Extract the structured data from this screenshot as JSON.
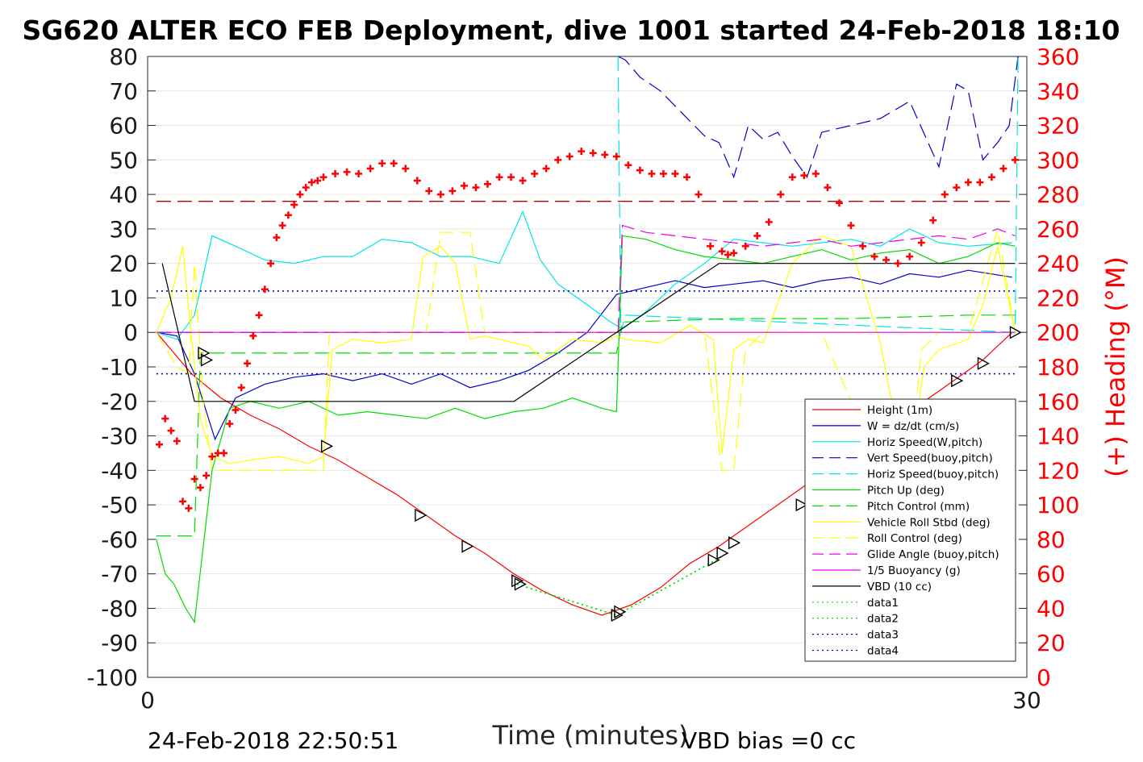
{
  "chart_data": {
    "type": "line",
    "title": "SG620 ALTER ECO FEB Deployment, dive 1001 started 24-Feb-2018 18:10",
    "xlabel": "Time (minutes)",
    "ylabel_right": "(+) Heading (°M)",
    "xlim": [
      0,
      30
    ],
    "ylim": [
      -100,
      80
    ],
    "ylim_right": [
      0,
      360
    ],
    "x_ticks": [
      "0",
      "30"
    ],
    "y_ticks": [
      "80",
      "70",
      "60",
      "50",
      "40",
      "30",
      "20",
      "10",
      "0",
      "-10",
      "-20",
      "-30",
      "-40",
      "-50",
      "-60",
      "-70",
      "-80",
      "-90",
      "-100"
    ],
    "y_ticks_right": [
      "360",
      "340",
      "320",
      "300",
      "280",
      "260",
      "240",
      "220",
      "200",
      "180",
      "160",
      "140",
      "120",
      "100",
      "80",
      "60",
      "40",
      "20",
      "0"
    ],
    "grid": true,
    "legend_position": "lower-right",
    "footer_left": "24-Feb-2018 22:50:51",
    "footer_right": "VBD bias =0 cc",
    "colors": {
      "heading": "#ff0000",
      "axis_right": "#ff0000"
    },
    "series": [
      {
        "name": "Height (1m)",
        "color": "#ff0000",
        "style": "solid",
        "axis": "left",
        "x": [
          0.3,
          0.8,
          1.5,
          2.5,
          3.5,
          4.5,
          5.5,
          6.5,
          7.5,
          8.5,
          9.5,
          10.5,
          11.5,
          12.5,
          13.5,
          14.5,
          15.5,
          16.5,
          17.5,
          18.5,
          19.5,
          20.5,
          21.5,
          22.5,
          23.5,
          24.5,
          25.5,
          26.5,
          27.5,
          28.5,
          29.5
        ],
        "y": [
          0,
          -5,
          -12,
          -19,
          -24,
          -28,
          -33,
          -37,
          -42,
          -47,
          -53,
          -59,
          -64,
          -70,
          -75,
          -79,
          -82,
          -79,
          -74,
          -67,
          -62,
          -56,
          -50,
          -44,
          -38,
          -32,
          -26,
          -20,
          -14,
          -8,
          0
        ]
      },
      {
        "name": "W = dz/dt (cm/s)",
        "color": "#0000cc",
        "style": "solid",
        "axis": "left",
        "x": [
          0.3,
          1.0,
          1.6,
          2.3,
          3.0,
          4.0,
          5.0,
          6.0,
          7.0,
          8.0,
          9.0,
          10.0,
          11.0,
          12.0,
          13.0,
          14.0,
          15.0,
          16.0,
          17.0,
          18.0,
          19.0,
          20.0,
          21.0,
          22.0,
          23.0,
          24.0,
          25.0,
          26.0,
          27.0,
          28.0,
          29.5
        ],
        "y": [
          0,
          -1,
          -12,
          -31,
          -19,
          -15,
          -13,
          -12,
          -14,
          -12,
          -15,
          -12,
          -16,
          -14,
          -11,
          -6,
          0,
          11,
          13,
          15,
          13,
          14,
          15,
          13,
          15,
          16,
          14,
          17,
          16,
          18,
          16
        ]
      },
      {
        "name": "Horiz Speed(W,pitch)",
        "color": "#00e5e5",
        "style": "solid",
        "axis": "left",
        "x": [
          0.3,
          1.0,
          1.6,
          2.2,
          3.0,
          4.0,
          5.0,
          6.0,
          7.0,
          8.0,
          9.0,
          10.0,
          11.0,
          12.0,
          12.8,
          13.4,
          14.0,
          15.0,
          15.8,
          16.2,
          17.0,
          18.0,
          19.0,
          20.0,
          21.0,
          22.0,
          23.0,
          24.0,
          25.0,
          26.0,
          27.0,
          28.0,
          29.5
        ],
        "y": [
          0,
          -2,
          5,
          28,
          25,
          21,
          20,
          22,
          22,
          27,
          26,
          22,
          22,
          20,
          35,
          21,
          14,
          8,
          3,
          1,
          6,
          14,
          20,
          27,
          26,
          25,
          26,
          27,
          25,
          30,
          26,
          25,
          26
        ]
      },
      {
        "name": "Vert Speed(buoy,pitch)",
        "color": "#0000cc",
        "style": "dashed",
        "axis": "left",
        "x": [
          16.05,
          16.3,
          16.8,
          17.5,
          18.3,
          19.0,
          19.5,
          20.0,
          20.5,
          21.0,
          21.5,
          22.0,
          22.5,
          23.0,
          24.0,
          25.0,
          26.0,
          27.0,
          27.6,
          28.0,
          28.5,
          29.0,
          29.4,
          29.7
        ],
        "y": [
          80,
          79,
          74,
          70,
          63,
          57,
          55,
          45,
          60,
          56,
          58,
          51,
          45,
          58,
          60,
          62,
          67,
          48,
          72,
          70,
          50,
          55,
          60,
          80
        ]
      },
      {
        "name": "Horiz Speed(buoy,pitch)",
        "color": "#00e5e5",
        "style": "dashed",
        "axis": "left",
        "x": [
          16.05,
          16.15,
          16.3,
          29.6,
          29.7
        ],
        "y": [
          80,
          0,
          5,
          0,
          80
        ]
      },
      {
        "name": "Pitch Up (deg)",
        "color": "#00dd00",
        "style": "solid",
        "axis": "left",
        "x": [
          0.3,
          0.6,
          0.9,
          1.3,
          1.6,
          2.2,
          2.8,
          3.5,
          4.5,
          5.5,
          6.5,
          7.5,
          8.5,
          9.5,
          10.5,
          11.5,
          12.5,
          13.5,
          14.5,
          15.5,
          16.0,
          16.2,
          17.0,
          18.0,
          19.0,
          20.0,
          21.0,
          22.0,
          23.0,
          24.0,
          25.0,
          26.0,
          27.0,
          28.0,
          29.0,
          29.6
        ],
        "y": [
          -60,
          -70,
          -73,
          -80,
          -84,
          -40,
          -22,
          -20,
          -22,
          -20,
          -24,
          -23,
          -24,
          -25,
          -22,
          -25,
          -23,
          -22,
          -19,
          -22,
          -23,
          28,
          27,
          24,
          22,
          21,
          20,
          22,
          24,
          21,
          23,
          24,
          20,
          22,
          26,
          25
        ]
      },
      {
        "name": "Pitch Control (mm)",
        "color": "#00dd00",
        "style": "dashed",
        "axis": "left",
        "x": [
          0.3,
          1.6,
          1.8,
          6.0,
          10.0,
          14.0,
          16.0,
          16.2,
          20.0,
          24.0,
          28.0,
          29.6
        ],
        "y": [
          -59,
          -59,
          -6,
          -6,
          -6,
          -6,
          -6,
          3,
          4,
          4,
          5,
          5
        ]
      },
      {
        "name": "Vehicle Roll Stbd (deg)",
        "color": "#ffff00",
        "style": "solid",
        "axis": "left",
        "x": [
          0.3,
          0.8,
          1.2,
          1.5,
          1.8,
          2.2,
          2.8,
          3.5,
          4.5,
          5.5,
          6.0,
          6.3,
          7.0,
          8.0,
          9.0,
          9.4,
          10.0,
          10.5,
          11.0,
          11.5,
          12.0,
          12.5,
          13.0,
          13.5,
          14.5,
          15.5,
          16.0,
          16.3,
          17.5,
          18.5,
          19.3,
          19.6,
          20.0,
          20.5,
          21.0,
          22.0,
          23.0,
          24.0,
          25.0,
          25.5,
          26.0,
          26.5,
          27.0,
          28.0,
          28.5,
          29.0,
          29.6
        ],
        "y": [
          0,
          10,
          25,
          -2,
          -25,
          -36,
          -38,
          -37,
          -36,
          -38,
          -36,
          -5,
          -2,
          -3,
          -2,
          22,
          25,
          20,
          -2,
          -1,
          -2,
          -3,
          -4,
          -8,
          -2,
          -3,
          -1,
          -2,
          -3,
          2,
          -2,
          -35,
          -5,
          -2,
          -3,
          20,
          28,
          25,
          -3,
          -25,
          -38,
          -10,
          -5,
          -2,
          8,
          25,
          0
        ]
      },
      {
        "name": "Roll Control (deg)",
        "color": "#ffff00",
        "style": "dashed",
        "axis": "left",
        "x": [
          0.3,
          1.0,
          1.4,
          1.6,
          1.9,
          2.2,
          3.0,
          5.0,
          6.0,
          6.2,
          8.0,
          9.5,
          10.0,
          11.0,
          11.5,
          13.0,
          14.0,
          16.0,
          16.2,
          19.0,
          19.6,
          20.0,
          20.4,
          21.0,
          23.0,
          25.0,
          25.5,
          26.0,
          26.4,
          27.0,
          28.0,
          29.0,
          29.6
        ],
        "y": [
          0,
          -10,
          -12,
          20,
          -20,
          -40,
          -40,
          -40,
          -40,
          0,
          0,
          0,
          29,
          29,
          0,
          0,
          0,
          0,
          0,
          0,
          -40,
          -40,
          -5,
          0,
          0,
          -40,
          -40,
          -40,
          -5,
          0,
          0,
          30,
          0
        ]
      },
      {
        "name": "Glide Angle (buoy,pitch)",
        "color": "#ee00ee",
        "style": "dashed",
        "axis": "left",
        "x": [
          16.05,
          16.2,
          17.0,
          18.0,
          19.0,
          20.0,
          21.0,
          22.0,
          23.0,
          24.0,
          25.0,
          26.0,
          27.0,
          28.0,
          29.0,
          29.6
        ],
        "y": [
          0,
          31,
          29,
          28,
          27,
          26,
          25,
          26,
          27,
          25,
          26,
          27,
          28,
          27,
          30,
          28
        ]
      },
      {
        "name": "1/5 Buoyancy (g)",
        "color": "#ee00ee",
        "style": "solid",
        "axis": "left",
        "x": [
          0.3,
          29.6
        ],
        "y": [
          0,
          0
        ]
      },
      {
        "name": "VBD (10 cc)",
        "color": "#000000",
        "style": "solid",
        "axis": "left",
        "x": [
          0.5,
          1.6,
          2.0,
          6.0,
          10.0,
          12.5,
          16.0,
          19.5,
          25.0,
          29.6
        ],
        "y": [
          20,
          -20,
          -20,
          -20,
          -20,
          -20,
          0,
          20,
          20,
          20
        ]
      },
      {
        "name": "data1",
        "color": "#00dd00",
        "style": "dotted",
        "axis": "left",
        "x": [
          12.6,
          16.0,
          19.6
        ],
        "y": [
          -73,
          -82,
          -65
        ]
      },
      {
        "name": "data2",
        "color": "#00dd00",
        "style": "dotted",
        "axis": "left",
        "x": [
          12.6,
          16.0,
          19.6
        ],
        "y": [
          -73,
          -82,
          -65
        ]
      },
      {
        "name": "data3",
        "color": "#0000cc",
        "style": "dotted",
        "axis": "left",
        "x": [
          0.3,
          29.6
        ],
        "y": [
          12,
          12
        ]
      },
      {
        "name": "data4",
        "color": "#0000cc",
        "style": "dotted",
        "axis": "left",
        "x": [
          0.3,
          29.6
        ],
        "y": [
          -12,
          -12
        ]
      }
    ],
    "extra_lines": [
      {
        "color": "#bb0000",
        "style": "dashed",
        "axis": "right",
        "x": [
          0.3,
          29.6
        ],
        "y": [
          276,
          276
        ]
      },
      {
        "color": "#8000ff",
        "style": "dashed",
        "axis": "left",
        "x": [
          0.3,
          16.0
        ],
        "y": [
          0,
          0
        ]
      }
    ],
    "heading_points": {
      "color": "#ff0000",
      "marker": "plus",
      "axis": "right",
      "x": [
        0.4,
        0.6,
        0.8,
        1.0,
        1.2,
        1.4,
        1.6,
        1.8,
        2.0,
        2.2,
        2.4,
        2.6,
        2.8,
        3.0,
        3.2,
        3.4,
        3.6,
        3.8,
        4.0,
        4.2,
        4.4,
        4.6,
        4.8,
        5.0,
        5.2,
        5.4,
        5.6,
        5.8,
        6.0,
        6.4,
        6.8,
        7.2,
        7.6,
        8.0,
        8.4,
        8.8,
        9.2,
        9.6,
        10.0,
        10.4,
        10.8,
        11.2,
        11.6,
        12.0,
        12.4,
        12.8,
        13.2,
        13.6,
        14.0,
        14.4,
        14.8,
        15.2,
        15.6,
        16.0,
        16.4,
        16.8,
        17.2,
        17.6,
        18.0,
        18.4,
        18.8,
        19.2,
        19.6,
        19.8,
        20.0,
        20.4,
        20.8,
        21.2,
        21.6,
        22.0,
        22.4,
        22.8,
        23.2,
        23.6,
        24.0,
        24.4,
        24.8,
        25.2,
        25.6,
        26.0,
        26.4,
        26.8,
        27.2,
        27.6,
        28.0,
        28.4,
        28.8,
        29.2,
        29.6
      ],
      "y": [
        135,
        150,
        143,
        137,
        102,
        98,
        115,
        110,
        117,
        128,
        130,
        130,
        147,
        155,
        168,
        182,
        198,
        210,
        225,
        240,
        255,
        262,
        268,
        274,
        280,
        284,
        287,
        288,
        290,
        292,
        293,
        292,
        295,
        298,
        298,
        295,
        288,
        282,
        280,
        282,
        285,
        284,
        286,
        290,
        290,
        288,
        292,
        295,
        300,
        302,
        305,
        304,
        303,
        302,
        297,
        294,
        292,
        292,
        292,
        290,
        280,
        250,
        247,
        245,
        246,
        250,
        256,
        264,
        280,
        290,
        291,
        292,
        284,
        275,
        262,
        250,
        244,
        242,
        240,
        244,
        252,
        265,
        280,
        284,
        287,
        287,
        290,
        295,
        300
      ]
    },
    "markers": {
      "marker": "triangle",
      "color": "#000000",
      "axis": "left",
      "x": [
        1.9,
        2.0,
        6.1,
        9.3,
        10.9,
        12.6,
        12.7,
        16.0,
        16.1,
        19.3,
        19.6,
        20.0,
        22.3,
        23.3,
        25.2,
        25.9,
        27.6,
        28.5,
        29.6
      ],
      "y": [
        -6,
        -8,
        -33,
        -53,
        -62,
        -72,
        -73,
        -82,
        -81,
        -66,
        -64,
        -61,
        -50,
        -43,
        -32,
        -27,
        -14,
        -9,
        0
      ]
    }
  }
}
